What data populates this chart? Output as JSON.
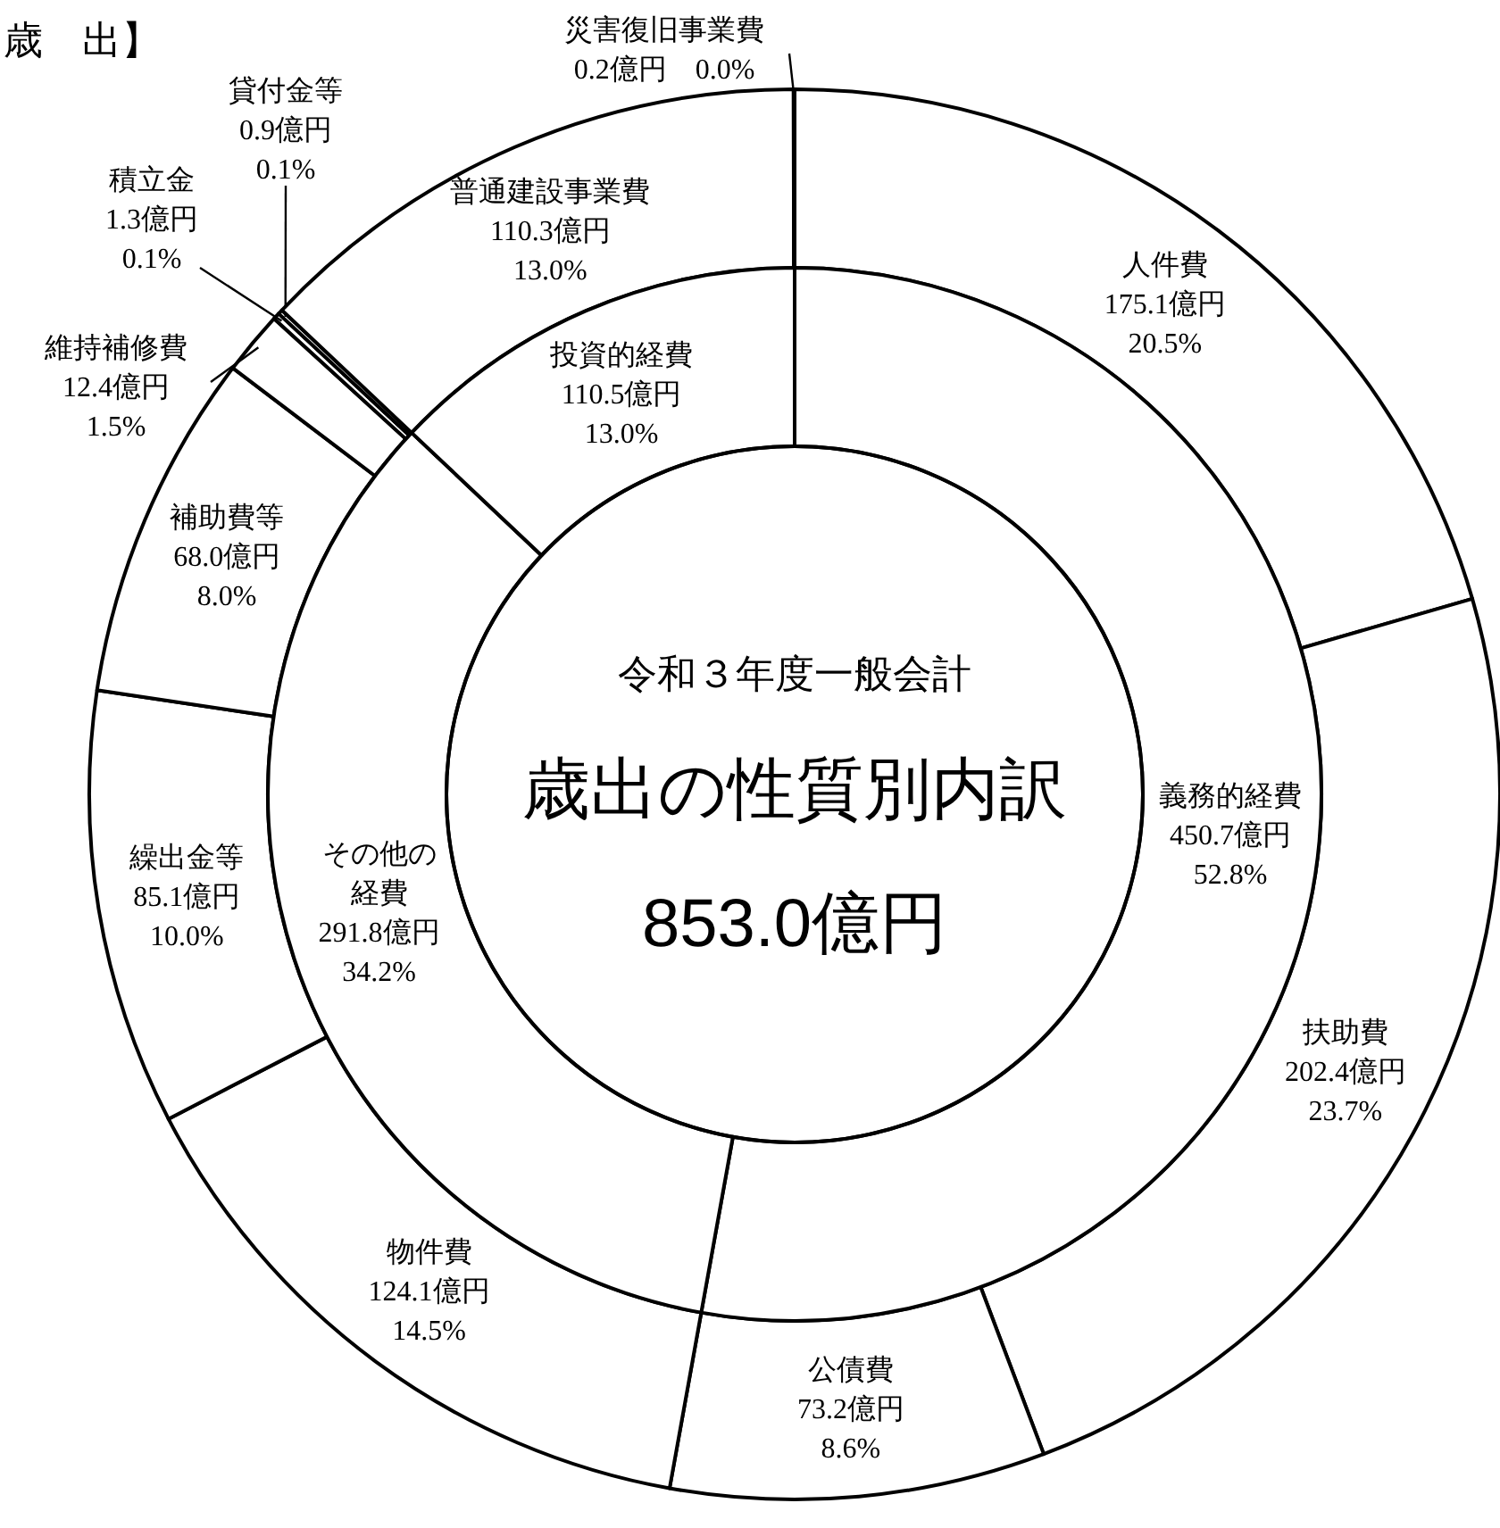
{
  "chart_data": [
    {
      "type": "donut",
      "title": "歳　出】",
      "categories": [
        "人件費",
        "扶助費",
        "公債費",
        "物件費",
        "繰出金等",
        "補助費等",
        "維持補修費",
        "積立金",
        "貸付金等",
        "普通建設事業費",
        "災害復旧事業費"
      ],
      "values": [
        175.1,
        202.4,
        73.2,
        124.1,
        85.1,
        68.0,
        12.4,
        1.3,
        0.9,
        110.3,
        0.2
      ],
      "value_labels": [
        "175.1億円\n20.5%",
        "202.4億円\n23.7%",
        "73.2億円\n8.6%",
        "124.1億円\n14.5%",
        "85.1億円\n10.0%",
        "68.0億円\n8.0%",
        "12.4億円\n1.5%",
        "1.3億円\n0.1%",
        "0.9億円\n0.1%",
        "110.3億円\n13.0%",
        "0.2億円\n0.0%"
      ],
      "colors": [
        "#ffffff",
        "#ffffff",
        "#ffffff",
        "#ffffff",
        "#ffffff",
        "#ffffff",
        "#ffffff",
        "#ffffff",
        "#ffffff",
        "#ffffff",
        "#ffffff"
      ]
    },
    {
      "type": "donut",
      "title": "歳出の性質別内訳",
      "subtitle": "令和３年度一般会計",
      "annotations": [
        "853.0億円"
      ],
      "categories": [
        "義務的経費",
        "その他の経費",
        "投資的経費"
      ],
      "values": [
        450.7,
        291.8,
        110.5
      ],
      "value_labels": [
        "450.7億円\n52.8%",
        "291.8億円\n34.2%",
        "110.5億円\n13.0%"
      ],
      "colors": [
        "#ffffff",
        "#ffffff",
        "#ffffff"
      ]
    }
  ]
}
